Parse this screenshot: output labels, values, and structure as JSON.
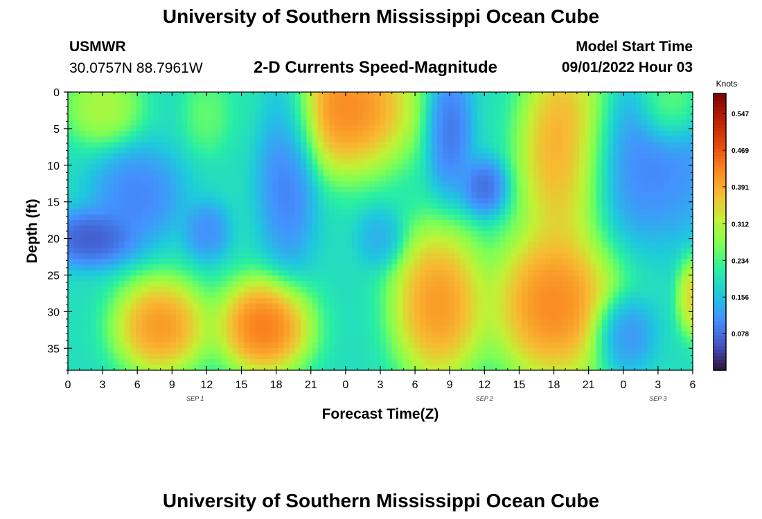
{
  "header": {
    "title": "University of Southern Mississippi Ocean Cube",
    "station_name": "USMWR",
    "station_coords": "30.0757N  88.7961W",
    "product_title": "2-D Currents Speed-Magnitude",
    "model_start_label": "Model Start Time",
    "model_start_value": "09/01/2022 Hour 03"
  },
  "footer": {
    "title": "University of Southern Mississippi Ocean Cube"
  },
  "chart_data": {
    "type": "heatmap",
    "xlabel": "Forecast Time(Z)",
    "ylabel": "Depth (ft)",
    "x_tick_labels": [
      "0",
      "3",
      "6",
      "9",
      "12",
      "15",
      "18",
      "21",
      "0",
      "3",
      "6",
      "9",
      "12",
      "15",
      "18",
      "21",
      "0",
      "3",
      "6"
    ],
    "x_hours_range": [
      0,
      54
    ],
    "date_labels": [
      {
        "text": "SEP 1",
        "hour": 11
      },
      {
        "text": "SEP 2",
        "hour": 36
      },
      {
        "text": "SEP 3",
        "hour": 51
      }
    ],
    "y_tick_labels": [
      "0",
      "5",
      "10",
      "15",
      "20",
      "25",
      "30",
      "35"
    ],
    "ylim": [
      0,
      38
    ],
    "y_inverted": true,
    "colorbar": {
      "unit": "Knots",
      "tick_labels": [
        "0.547",
        "0.469",
        "0.391",
        "0.312",
        "0.234",
        "0.156",
        "0.078"
      ],
      "range": [
        0,
        0.59
      ],
      "colors": [
        "#30123b",
        "#4454c4",
        "#4490fe",
        "#1fc8de",
        "#29efa2",
        "#7eff55",
        "#c4f134",
        "#f8ba33",
        "#fa8420",
        "#e4460a",
        "#b81f00",
        "#7a0403"
      ]
    },
    "field": {
      "description_of_values": "current speed magnitude (knots) at hour x, depth y",
      "base": 0.19,
      "features": [
        {
          "hour": 3,
          "depth": 2,
          "value": 0.34,
          "hr_spread": 2.5,
          "depth_spread": 4
        },
        {
          "hour": 12,
          "depth": 3,
          "value": 0.27,
          "hr_spread": 1.5,
          "depth_spread": 4
        },
        {
          "hour": 19,
          "depth": 8,
          "value": 0.05,
          "hr_spread": 2,
          "depth_spread": 12
        },
        {
          "hour": 24,
          "depth": 2,
          "value": 0.5,
          "hr_spread": 4.5,
          "depth_spread": 7
        },
        {
          "hour": 33,
          "depth": 5,
          "value": 0.05,
          "hr_spread": 1.5,
          "depth_spread": 7
        },
        {
          "hour": 36,
          "depth": 13,
          "value": 0.04,
          "hr_spread": 1.5,
          "depth_spread": 3
        },
        {
          "hour": 43,
          "depth": 8,
          "value": 0.48,
          "hr_spread": 3,
          "depth_spread": 10
        },
        {
          "hour": 50,
          "depth": 10,
          "value": 0.07,
          "hr_spread": 5,
          "depth_spread": 8
        },
        {
          "hour": 52,
          "depth": 2,
          "value": 0.3,
          "hr_spread": 2,
          "depth_spread": 4
        },
        {
          "hour": 2,
          "depth": 20,
          "value": 0.02,
          "hr_spread": 3,
          "depth_spread": 3
        },
        {
          "hour": 6,
          "depth": 14,
          "value": 0.07,
          "hr_spread": 3,
          "depth_spread": 5
        },
        {
          "hour": 12,
          "depth": 19,
          "value": 0.08,
          "hr_spread": 1.5,
          "depth_spread": 3
        },
        {
          "hour": 27,
          "depth": 20,
          "value": 0.12,
          "hr_spread": 1.5,
          "depth_spread": 3
        },
        {
          "hour": 8,
          "depth": 32,
          "value": 0.48,
          "hr_spread": 3,
          "depth_spread": 5
        },
        {
          "hour": 17,
          "depth": 32,
          "value": 0.52,
          "hr_spread": 3,
          "depth_spread": 5
        },
        {
          "hour": 32,
          "depth": 29,
          "value": 0.48,
          "hr_spread": 3,
          "depth_spread": 8
        },
        {
          "hour": 42,
          "depth": 29,
          "value": 0.5,
          "hr_spread": 4,
          "depth_spread": 8
        },
        {
          "hour": 48,
          "depth": 33,
          "value": 0.07,
          "hr_spread": 2,
          "depth_spread": 4
        },
        {
          "hour": 54,
          "depth": 28,
          "value": 0.4,
          "hr_spread": 1,
          "depth_spread": 4
        }
      ]
    }
  }
}
